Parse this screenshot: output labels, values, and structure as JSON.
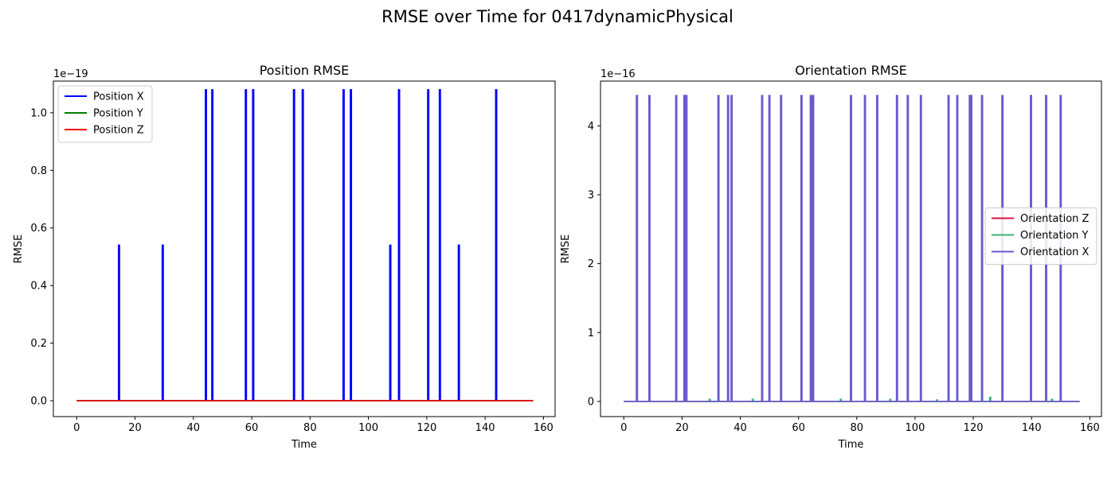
{
  "figure": {
    "suptitle": "RMSE over Time for 0417dynamicPhysical"
  },
  "chart_data": [
    {
      "type": "line",
      "title": "Position RMSE",
      "xlabel": "Time",
      "ylabel": "RMSE",
      "offset_label": "1e−19",
      "xlim": [
        -8,
        164
      ],
      "ylim": [
        -0.055,
        1.11
      ],
      "xticks": [
        0,
        20,
        40,
        60,
        80,
        100,
        120,
        140,
        160
      ],
      "xtick_labels": [
        "0",
        "20",
        "40",
        "60",
        "80",
        "100",
        "120",
        "140",
        "160"
      ],
      "yticks": [
        0,
        0.2,
        0.4,
        0.6,
        0.8,
        1.0
      ],
      "ytick_labels": [
        "0.0",
        "0.2",
        "0.4",
        "0.6",
        "0.8",
        "1.0"
      ],
      "x_end": 156.5,
      "legend_position": "upper-left",
      "grid": false,
      "series": [
        {
          "name": "Position X",
          "color": "#0000ff",
          "spikes": [
            {
              "x": 14.5,
              "y": 0.54
            },
            {
              "x": 29.5,
              "y": 0.54
            },
            {
              "x": 44.3,
              "y": 1.08
            },
            {
              "x": 46.5,
              "y": 1.08
            },
            {
              "x": 58.0,
              "y": 1.08
            },
            {
              "x": 60.5,
              "y": 1.08
            },
            {
              "x": 74.5,
              "y": 1.08
            },
            {
              "x": 77.5,
              "y": 1.08
            },
            {
              "x": 91.5,
              "y": 1.08
            },
            {
              "x": 94.0,
              "y": 1.08
            },
            {
              "x": 107.5,
              "y": 0.54
            },
            {
              "x": 110.5,
              "y": 1.08
            },
            {
              "x": 120.5,
              "y": 1.08
            },
            {
              "x": 124.5,
              "y": 1.08
            },
            {
              "x": 131.0,
              "y": 0.54
            },
            {
              "x": 143.8,
              "y": 1.08
            }
          ]
        },
        {
          "name": "Position Y",
          "color": "#008000",
          "spikes": []
        },
        {
          "name": "Position Z",
          "color": "#ff0000",
          "spikes": []
        }
      ]
    },
    {
      "type": "line",
      "title": "Orientation RMSE",
      "xlabel": "Time",
      "ylabel": "RMSE",
      "offset_label": "1e−16",
      "xlim": [
        -8,
        164
      ],
      "ylim": [
        -0.22,
        4.65
      ],
      "xticks": [
        0,
        20,
        40,
        60,
        80,
        100,
        120,
        140,
        160
      ],
      "xtick_labels": [
        "0",
        "20",
        "40",
        "60",
        "80",
        "100",
        "120",
        "140",
        "160"
      ],
      "yticks": [
        0,
        1,
        2,
        3,
        4
      ],
      "ytick_labels": [
        "0",
        "1",
        "2",
        "3",
        "4"
      ],
      "x_end": 156.5,
      "legend_position": "center-right",
      "grid": false,
      "series": [
        {
          "name": "Orientation Z",
          "color": "#dc143c",
          "spikes": []
        },
        {
          "name": "Orientation Y",
          "color": "#3cb371",
          "spikes": [
            {
              "x": 29.5,
              "y": 0.03
            },
            {
              "x": 44.3,
              "y": 0.03
            },
            {
              "x": 74.5,
              "y": 0.03
            },
            {
              "x": 91.5,
              "y": 0.03
            },
            {
              "x": 107.5,
              "y": 0.02
            },
            {
              "x": 125.8,
              "y": 0.06
            },
            {
              "x": 147.0,
              "y": 0.03
            }
          ]
        },
        {
          "name": "Orientation X",
          "color": "#6a5acd",
          "spikes": [
            {
              "x": 4.5,
              "y": 4.44
            },
            {
              "x": 8.8,
              "y": 4.44
            },
            {
              "x": 18.0,
              "y": 4.44
            },
            {
              "x": 20.8,
              "y": 4.44
            },
            {
              "x": 21.5,
              "y": 4.44
            },
            {
              "x": 32.5,
              "y": 4.44
            },
            {
              "x": 35.8,
              "y": 4.44
            },
            {
              "x": 37.0,
              "y": 4.44
            },
            {
              "x": 47.5,
              "y": 4.44
            },
            {
              "x": 50.0,
              "y": 4.44
            },
            {
              "x": 54.0,
              "y": 4.44
            },
            {
              "x": 61.0,
              "y": 4.44
            },
            {
              "x": 64.2,
              "y": 4.44
            },
            {
              "x": 65.0,
              "y": 4.44
            },
            {
              "x": 78.0,
              "y": 4.44
            },
            {
              "x": 82.8,
              "y": 4.44
            },
            {
              "x": 87.0,
              "y": 4.44
            },
            {
              "x": 93.8,
              "y": 4.44
            },
            {
              "x": 97.5,
              "y": 4.44
            },
            {
              "x": 102.0,
              "y": 4.44
            },
            {
              "x": 111.5,
              "y": 4.44
            },
            {
              "x": 114.5,
              "y": 4.44
            },
            {
              "x": 118.8,
              "y": 4.44
            },
            {
              "x": 119.3,
              "y": 4.44
            },
            {
              "x": 123.0,
              "y": 4.44
            },
            {
              "x": 130.0,
              "y": 4.44
            },
            {
              "x": 139.8,
              "y": 4.44
            },
            {
              "x": 145.0,
              "y": 4.44
            },
            {
              "x": 150.0,
              "y": 4.44
            }
          ]
        }
      ]
    }
  ]
}
